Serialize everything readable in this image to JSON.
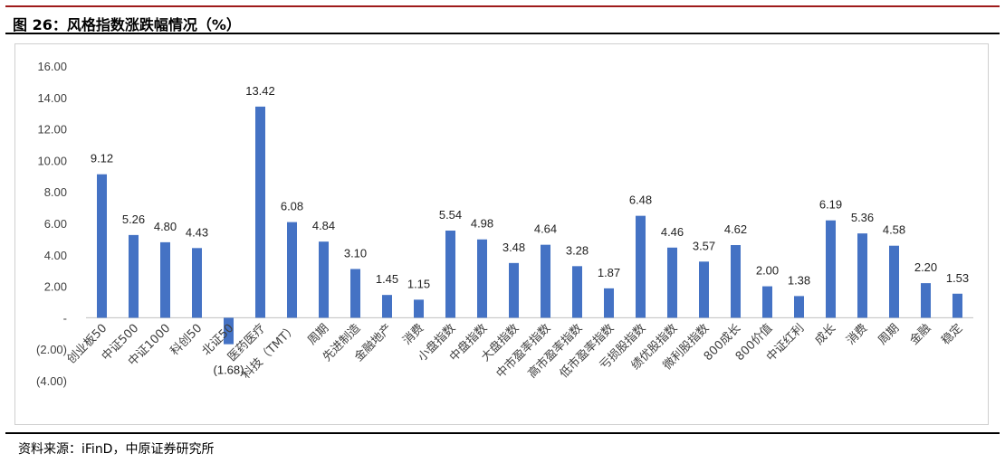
{
  "header": {
    "title": "图 26：风格指数涨跌幅情况（%）"
  },
  "source": {
    "text": "资料来源：iFinD，中原证券研究所"
  },
  "colors": {
    "bar": "#4472C4",
    "accent_rule": "#9e1b1b"
  },
  "chart_data": {
    "type": "bar",
    "title": "",
    "xlabel": "",
    "ylabel": "",
    "ylim": [
      -4,
      16
    ],
    "yticks": [
      -4,
      -2,
      0,
      2,
      4,
      6,
      8,
      10,
      12,
      14,
      16
    ],
    "ytick_labels": [
      "(4.00)",
      "(2.00)",
      "-",
      "2.00",
      "4.00",
      "6.00",
      "8.00",
      "10.00",
      "12.00",
      "14.00",
      "16.00"
    ],
    "grid": false,
    "categories": [
      "创业板50",
      "中证500",
      "中证1000",
      "科创50",
      "北证50",
      "医药医疗",
      "科技（TMT）",
      "周期",
      "先进制造",
      "金融地产",
      "消费",
      "小盘指数",
      "中盘指数",
      "大盘指数",
      "中市盈率指数",
      "高市盈率指数",
      "低市盈率指数",
      "亏损股指数",
      "绩优股指数",
      "微利股指数",
      "800成长",
      "800价值",
      "中证红利",
      "成长",
      "消费",
      "周期",
      "金融",
      "稳定"
    ],
    "values": [
      9.12,
      5.26,
      4.8,
      4.43,
      -1.68,
      13.42,
      6.08,
      4.84,
      3.1,
      1.45,
      1.15,
      5.54,
      4.98,
      3.48,
      4.64,
      3.28,
      1.87,
      6.48,
      4.46,
      3.57,
      4.62,
      2.0,
      1.38,
      6.19,
      5.36,
      4.58,
      2.2,
      1.53
    ],
    "value_labels": [
      "9.12",
      "5.26",
      "4.80",
      "4.43",
      "(1.68)",
      "13.42",
      "6.08",
      "4.84",
      "3.10",
      "1.45",
      "1.15",
      "5.54",
      "4.98",
      "3.48",
      "4.64",
      "3.28",
      "1.87",
      "6.48",
      "4.46",
      "3.57",
      "4.62",
      "2.00",
      "1.38",
      "6.19",
      "5.36",
      "4.58",
      "2.20",
      "1.53"
    ]
  }
}
